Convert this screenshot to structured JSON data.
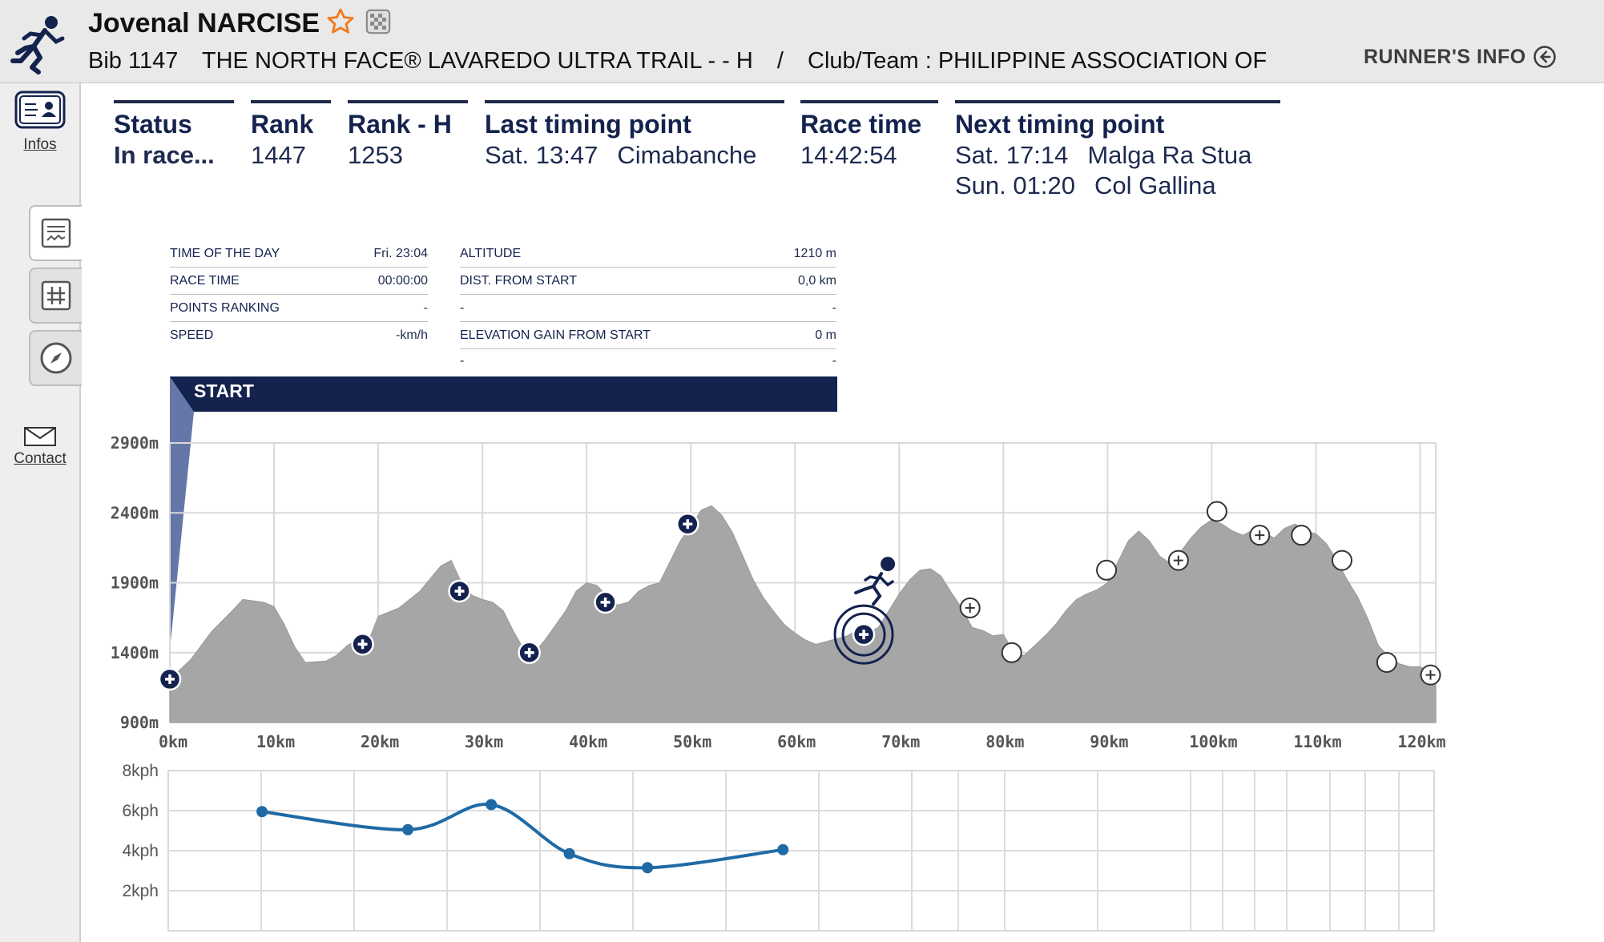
{
  "header": {
    "runner_name": "Jovenal NARCISE",
    "bib": "Bib 1147",
    "race": "THE NORTH FACE® LAVAREDO ULTRA TRAIL - - H",
    "separator": "/",
    "club": "Club/Team : PHILIPPINE ASSOCIATION OF",
    "runners_info_label": "RUNNER'S INFO"
  },
  "sidebar": {
    "infos_label": "Infos",
    "contact_label": "Contact"
  },
  "status": {
    "status_label": "Status",
    "status_value": "In race...",
    "rank_label": "Rank",
    "rank_value": "1447",
    "rank_h_label": "Rank - H",
    "rank_h_value": "1253",
    "last_label": "Last timing point",
    "last_time": "Sat. 13:47",
    "last_place": "Cimabanche",
    "race_time_label": "Race time",
    "race_time_value": "14:42:54",
    "next_label": "Next timing point",
    "next_1_time": "Sat. 17:14",
    "next_1_place": "Malga Ra Stua",
    "next_2_time": "Sun. 01:20",
    "next_2_place": "Col Gallina"
  },
  "info": {
    "left": [
      {
        "key": "TIME OF THE DAY",
        "value": "Fri. 23:04"
      },
      {
        "key": "RACE TIME",
        "value": "00:00:00"
      },
      {
        "key": "POINTS RANKING",
        "value": "-"
      },
      {
        "key": "SPEED",
        "value": "-km/h"
      }
    ],
    "right": [
      {
        "key": "ALTITUDE",
        "value": "1210 m"
      },
      {
        "key": "DIST. FROM START",
        "value": "0,0 km"
      },
      {
        "key": "-",
        "value": "-"
      },
      {
        "key": "ELEVATION GAIN FROM START",
        "value": "0 m"
      },
      {
        "key": "-",
        "value": "-"
      }
    ],
    "banner": "START"
  },
  "colors": {
    "navy": "#14224e",
    "profile_fill": "#a6a6a6",
    "speed_line": "#1f6aa5"
  },
  "chart_data": [
    {
      "type": "area",
      "x_ticks": [
        "0km",
        "10km",
        "20km",
        "30km",
        "40km",
        "50km",
        "60km",
        "70km",
        "80km",
        "90km",
        "100km",
        "110km",
        "120km"
      ],
      "y_ticks": [
        "900m",
        "1400m",
        "1900m",
        "2400m",
        "2900m"
      ],
      "xlim": [
        0,
        121.5
      ],
      "ylim": [
        900,
        2900
      ],
      "profile": [
        [
          0,
          1210
        ],
        [
          2,
          1350
        ],
        [
          4,
          1550
        ],
        [
          6,
          1700
        ],
        [
          7,
          1780
        ],
        [
          9,
          1760
        ],
        [
          10,
          1730
        ],
        [
          11,
          1600
        ],
        [
          12,
          1440
        ],
        [
          13,
          1330
        ],
        [
          15,
          1340
        ],
        [
          16,
          1380
        ],
        [
          17,
          1450
        ],
        [
          18,
          1490
        ],
        [
          19,
          1470
        ],
        [
          20,
          1660
        ],
        [
          22,
          1720
        ],
        [
          24,
          1840
        ],
        [
          25,
          1930
        ],
        [
          26,
          2020
        ],
        [
          27,
          2060
        ],
        [
          28,
          1900
        ],
        [
          29,
          1810
        ],
        [
          30,
          1780
        ],
        [
          31,
          1760
        ],
        [
          32,
          1700
        ],
        [
          33,
          1550
        ],
        [
          34,
          1420
        ],
        [
          35,
          1400
        ],
        [
          36,
          1490
        ],
        [
          38,
          1700
        ],
        [
          39,
          1840
        ],
        [
          40,
          1900
        ],
        [
          41,
          1880
        ],
        [
          42,
          1800
        ],
        [
          43,
          1740
        ],
        [
          44,
          1760
        ],
        [
          45,
          1840
        ],
        [
          46,
          1880
        ],
        [
          47,
          1900
        ],
        [
          48,
          2050
        ],
        [
          49,
          2200
        ],
        [
          50,
          2300
        ],
        [
          51,
          2420
        ],
        [
          52,
          2450
        ],
        [
          53,
          2380
        ],
        [
          54,
          2260
        ],
        [
          55,
          2090
        ],
        [
          56,
          1920
        ],
        [
          57,
          1790
        ],
        [
          58,
          1690
        ],
        [
          59,
          1600
        ],
        [
          60,
          1540
        ],
        [
          61,
          1490
        ],
        [
          62,
          1460
        ],
        [
          63,
          1480
        ],
        [
          64,
          1500
        ],
        [
          65,
          1520
        ],
        [
          66,
          1560
        ],
        [
          67,
          1540
        ],
        [
          68,
          1580
        ],
        [
          69,
          1700
        ],
        [
          70,
          1820
        ],
        [
          71,
          1920
        ],
        [
          72,
          1990
        ],
        [
          73,
          2000
        ],
        [
          74,
          1950
        ],
        [
          75,
          1830
        ],
        [
          76,
          1720
        ],
        [
          77,
          1580
        ],
        [
          78,
          1560
        ],
        [
          79,
          1520
        ],
        [
          80,
          1530
        ],
        [
          81,
          1400
        ],
        [
          82,
          1380
        ],
        [
          83,
          1450
        ],
        [
          84,
          1520
        ],
        [
          85,
          1600
        ],
        [
          86,
          1700
        ],
        [
          87,
          1780
        ],
        [
          88,
          1820
        ],
        [
          89,
          1850
        ],
        [
          90,
          1900
        ],
        [
          91,
          2050
        ],
        [
          92,
          2200
        ],
        [
          93,
          2270
        ],
        [
          94,
          2200
        ],
        [
          95,
          2090
        ],
        [
          96,
          2040
        ],
        [
          97,
          2120
        ],
        [
          98,
          2220
        ],
        [
          99,
          2300
        ],
        [
          100,
          2350
        ],
        [
          101,
          2320
        ],
        [
          102,
          2270
        ],
        [
          103,
          2240
        ],
        [
          104,
          2280
        ],
        [
          105,
          2260
        ],
        [
          106,
          2220
        ],
        [
          107,
          2290
        ],
        [
          108,
          2320
        ],
        [
          109,
          2270
        ],
        [
          110,
          2250
        ],
        [
          111,
          2180
        ],
        [
          112,
          2060
        ],
        [
          113,
          1920
        ],
        [
          114,
          1800
        ],
        [
          115,
          1640
        ],
        [
          116,
          1450
        ],
        [
          117,
          1370
        ],
        [
          118,
          1320
        ],
        [
          119,
          1300
        ],
        [
          120,
          1300
        ],
        [
          121,
          1260
        ],
        [
          121.5,
          1260
        ]
      ],
      "passed_points": [
        [
          0,
          1210
        ],
        [
          18.5,
          1460
        ],
        [
          27.8,
          1840
        ],
        [
          34.5,
          1400
        ],
        [
          41.8,
          1760
        ],
        [
          49.7,
          2320
        ],
        [
          66.6,
          1530
        ]
      ],
      "upcoming_points": [
        [
          76.8,
          1720
        ],
        [
          96.8,
          2060
        ],
        [
          104.6,
          2240
        ],
        [
          121,
          1240
        ]
      ],
      "landmark_points": [
        [
          80.8,
          1400
        ],
        [
          89.9,
          1990
        ],
        [
          100.5,
          2410
        ],
        [
          108.6,
          2240
        ],
        [
          112.5,
          2060
        ],
        [
          116.8,
          1330
        ]
      ],
      "runner_position": [
        66.6,
        1530
      ]
    },
    {
      "type": "line",
      "title": "",
      "y_ticks": [
        "2kph",
        "4kph",
        "6kph",
        "8kph"
      ],
      "ylim": [
        0,
        8
      ],
      "x": [
        9,
        23,
        31,
        38.5,
        46,
        59
      ],
      "values": [
        5.95,
        5.05,
        6.3,
        3.85,
        3.15,
        4.05
      ],
      "xlim": [
        0,
        121.5
      ]
    }
  ]
}
